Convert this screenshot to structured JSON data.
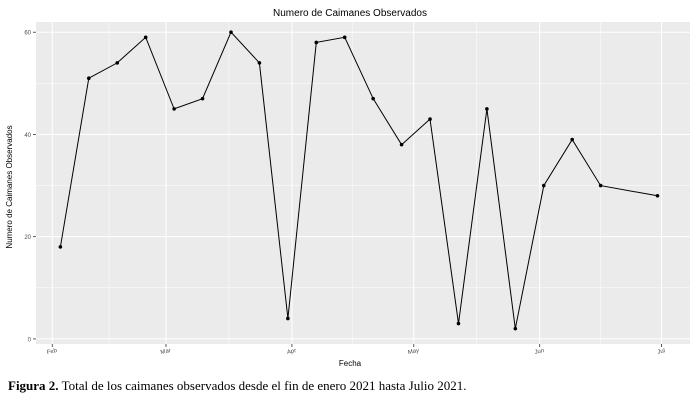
{
  "chart_data": {
    "type": "line",
    "title": "Numero de Caimanes Observados",
    "xlabel": "Fecha",
    "ylabel": "Numero de Caimanes Observados",
    "x_ticks": [
      {
        "label": "Feb",
        "date": "2021-02-01"
      },
      {
        "label": "Mar",
        "date": "2021-03-01"
      },
      {
        "label": "Apr",
        "date": "2021-04-01"
      },
      {
        "label": "May",
        "date": "2021-05-01"
      },
      {
        "label": "Jun",
        "date": "2021-06-01"
      },
      {
        "label": "Jul",
        "date": "2021-07-01"
      }
    ],
    "y_ticks": [
      0,
      20,
      40,
      60
    ],
    "xlim": [
      "2021-01-28",
      "2021-07-08"
    ],
    "ylim": [
      -1,
      62
    ],
    "grid": true,
    "points": [
      {
        "x": "2021-02-03",
        "y": 18
      },
      {
        "x": "2021-02-10",
        "y": 51
      },
      {
        "x": "2021-02-17",
        "y": 54
      },
      {
        "x": "2021-02-24",
        "y": 59
      },
      {
        "x": "2021-03-03",
        "y": 45
      },
      {
        "x": "2021-03-10",
        "y": 47
      },
      {
        "x": "2021-03-17",
        "y": 60
      },
      {
        "x": "2021-03-24",
        "y": 54
      },
      {
        "x": "2021-03-31",
        "y": 4
      },
      {
        "x": "2021-04-07",
        "y": 58
      },
      {
        "x": "2021-04-14",
        "y": 59
      },
      {
        "x": "2021-04-21",
        "y": 47
      },
      {
        "x": "2021-04-28",
        "y": 38
      },
      {
        "x": "2021-05-05",
        "y": 43
      },
      {
        "x": "2021-05-12",
        "y": 3
      },
      {
        "x": "2021-05-19",
        "y": 45
      },
      {
        "x": "2021-05-26",
        "y": 2
      },
      {
        "x": "2021-06-02",
        "y": 30
      },
      {
        "x": "2021-06-09",
        "y": 39
      },
      {
        "x": "2021-06-16",
        "y": 30
      },
      {
        "x": "2021-06-30",
        "y": 28
      }
    ]
  },
  "caption": {
    "label": "Figura 2.",
    "text": " Total de los caimanes observados desde el fin de enero 2021 hasta Julio 2021."
  },
  "colors": {
    "panel_background": "#ebebeb",
    "grid_major": "#ffffff",
    "line": "#000000",
    "axis_text": "#4d4d4d"
  }
}
